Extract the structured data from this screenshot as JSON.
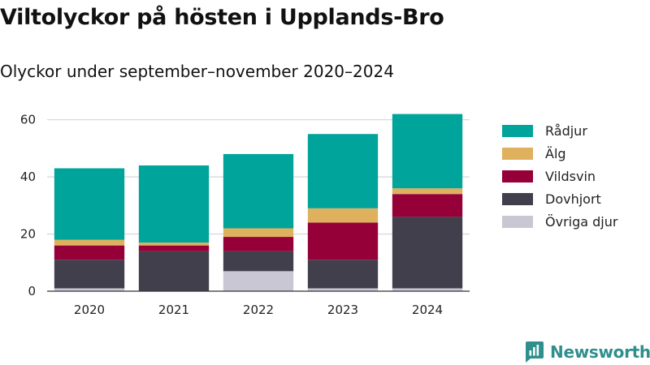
{
  "header": {
    "title": "Viltolyckor på hösten i Upplands-Bro",
    "subtitle": "Olyckor under september–november 2020–2024"
  },
  "brand": {
    "name": "Newsworthy",
    "icon": "newsworthy-logo-icon",
    "color": "#2e8f8c"
  },
  "chart_data": {
    "type": "bar",
    "stacked": true,
    "title": "Viltolyckor på hösten i Upplands-Bro",
    "subtitle": "Olyckor under september–november 2020–2024",
    "xlabel": "",
    "ylabel": "",
    "categories": [
      "2020",
      "2021",
      "2022",
      "2023",
      "2024"
    ],
    "ylim": [
      0,
      65
    ],
    "yticks": [
      0,
      20,
      40,
      60
    ],
    "grid": true,
    "legend_position": "right",
    "series": [
      {
        "name": "Övriga djur",
        "color": "#c9c7d4",
        "values": [
          1,
          0,
          7,
          1,
          1
        ]
      },
      {
        "name": "Dovhjort",
        "color": "#423f4d",
        "values": [
          10,
          14,
          7,
          10,
          25
        ]
      },
      {
        "name": "Vildsvin",
        "color": "#960039",
        "values": [
          5,
          2,
          5,
          13,
          8
        ]
      },
      {
        "name": "Älg",
        "color": "#dfb05e",
        "values": [
          2,
          1,
          3,
          5,
          2
        ]
      },
      {
        "name": "Rådjur",
        "color": "#00a49a",
        "values": [
          25,
          27,
          26,
          26,
          26
        ]
      }
    ]
  }
}
